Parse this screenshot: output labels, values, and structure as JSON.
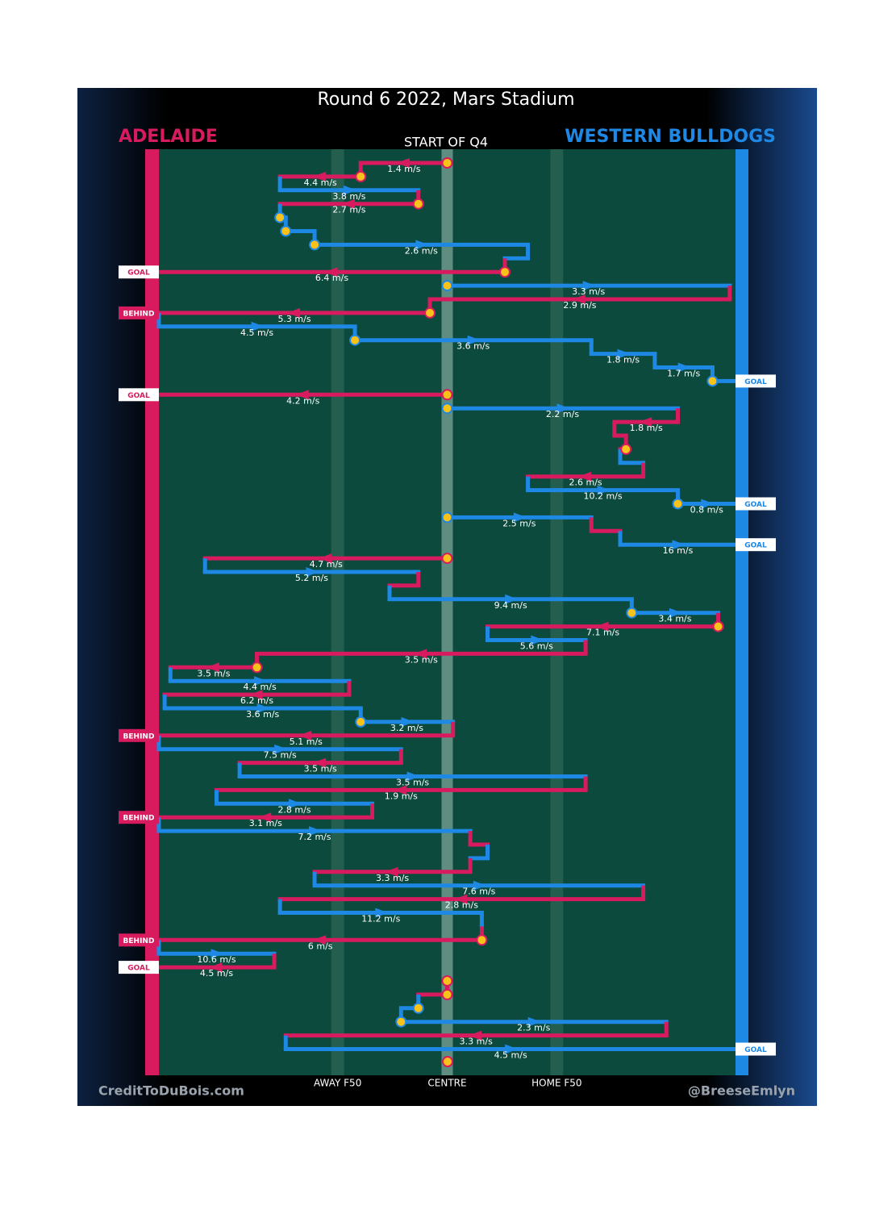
{
  "chart_data": {
    "type": "chain",
    "title": "Round 6 2022, Mars Stadium",
    "subtitle": "START OF Q4",
    "teams": [
      {
        "name": "ADELAIDE",
        "color": "#d81b5e"
      },
      {
        "name": "WESTERN BULLDOGS",
        "color": "#1e88e5"
      }
    ],
    "xlim": [
      0,
      100
    ],
    "xticks": [
      {
        "value": 31,
        "label": "AWAY F50"
      },
      {
        "value": 50,
        "label": "CENTRE"
      },
      {
        "value": 69,
        "label": "HOME F50"
      }
    ],
    "credits": [
      "CreditToDuBois.com",
      "@BreeseEmlyn"
    ],
    "moves": [
      {
        "team": 0,
        "from": 50,
        "to": 35,
        "label": "1.4 m/s",
        "stoppage": true
      },
      {
        "team": 0,
        "from": 35,
        "to": 21,
        "label": "4.4 m/s",
        "stoppage": true
      },
      {
        "team": 1,
        "from": 21,
        "to": 45,
        "label": "3.8 m/s"
      },
      {
        "team": 0,
        "from": 45,
        "to": 21,
        "label": "2.7 m/s",
        "stoppage": true
      },
      {
        "team": 1,
        "from": 21,
        "to": 22,
        "stoppage": true
      },
      {
        "team": 1,
        "from": 22,
        "to": 27,
        "stoppage": true
      },
      {
        "team": 1,
        "from": 27,
        "to": 64,
        "label": "2.6 m/s",
        "stoppage": true
      },
      {
        "team": 1,
        "from": 64,
        "to": 60
      },
      {
        "team": 0,
        "from": 60,
        "to": 0,
        "label": "6.4 m/s",
        "stoppage": true,
        "result": "GOAL"
      },
      {
        "team": 1,
        "from": 50,
        "to": 99,
        "label": "3.3 m/s",
        "stoppage": true
      },
      {
        "team": 0,
        "from": 99,
        "to": 47,
        "label": "2.9 m/s"
      },
      {
        "team": 0,
        "from": 47,
        "to": 0,
        "label": "5.3 m/s",
        "stoppage": true,
        "result": "BEHIND"
      },
      {
        "team": 1,
        "from": 0,
        "to": 34,
        "label": "4.5 m/s"
      },
      {
        "team": 1,
        "from": 34,
        "to": 75,
        "label": "3.6 m/s",
        "stoppage": true
      },
      {
        "team": 1,
        "from": 75,
        "to": 86,
        "label": "1.8 m/s"
      },
      {
        "team": 1,
        "from": 86,
        "to": 96,
        "label": "1.7 m/s"
      },
      {
        "team": 1,
        "from": 96,
        "to": 100,
        "stoppage": true,
        "result": "GOAL"
      },
      {
        "team": 0,
        "from": 50,
        "to": 0,
        "label": "4.2 m/s",
        "stoppage": true,
        "result": "GOAL"
      },
      {
        "team": 1,
        "from": 50,
        "to": 90,
        "label": "2.2 m/s",
        "stoppage": true
      },
      {
        "team": 0,
        "from": 90,
        "to": 79,
        "label": "1.8 m/s"
      },
      {
        "team": 0,
        "from": 79,
        "to": 81
      },
      {
        "team": 0,
        "from": 81,
        "to": 80,
        "stoppage": true
      },
      {
        "team": 1,
        "from": 80,
        "to": 84
      },
      {
        "team": 0,
        "from": 84,
        "to": 64,
        "label": "2.6 m/s"
      },
      {
        "team": 1,
        "from": 64,
        "to": 90,
        "label": "10.2 m/s"
      },
      {
        "team": 1,
        "from": 90,
        "to": 100,
        "label": "0.8 m/s",
        "stoppage": true,
        "result": "GOAL"
      },
      {
        "team": 1,
        "from": 50,
        "to": 75,
        "label": "2.5 m/s",
        "stoppage": true
      },
      {
        "team": 0,
        "from": 75,
        "to": 80
      },
      {
        "team": 1,
        "from": 80,
        "to": 100,
        "label": "16 m/s",
        "result": "GOAL"
      },
      {
        "team": 0,
        "from": 50,
        "to": 8,
        "label": "4.7 m/s",
        "stoppage": true
      },
      {
        "team": 1,
        "from": 8,
        "to": 45,
        "label": "5.2 m/s"
      },
      {
        "team": 0,
        "from": 45,
        "to": 40
      },
      {
        "team": 1,
        "from": 40,
        "to": 82,
        "label": "9.4 m/s"
      },
      {
        "team": 1,
        "from": 82,
        "to": 97,
        "label": "3.4 m/s",
        "stoppage": true
      },
      {
        "team": 0,
        "from": 97,
        "to": 57,
        "label": "7.1 m/s",
        "stoppage": true
      },
      {
        "team": 1,
        "from": 57,
        "to": 74,
        "label": "5.6 m/s"
      },
      {
        "team": 0,
        "from": 74,
        "to": 17,
        "label": "3.5 m/s"
      },
      {
        "team": 0,
        "from": 17,
        "to": 2,
        "label": "3.5 m/s",
        "stoppage": true
      },
      {
        "team": 1,
        "from": 2,
        "to": 33,
        "label": "4.4 m/s"
      },
      {
        "team": 0,
        "from": 33,
        "to": 1,
        "label": "6.2 m/s"
      },
      {
        "team": 1,
        "from": 1,
        "to": 35,
        "label": "3.6 m/s"
      },
      {
        "team": 1,
        "from": 35,
        "to": 51,
        "label": "3.2 m/s",
        "stoppage": true
      },
      {
        "team": 0,
        "from": 51,
        "to": 0,
        "label": "5.1 m/s",
        "result": "BEHIND"
      },
      {
        "team": 1,
        "from": 0,
        "to": 42,
        "label": "7.5 m/s"
      },
      {
        "team": 0,
        "from": 42,
        "to": 14,
        "label": "3.5 m/s"
      },
      {
        "team": 1,
        "from": 14,
        "to": 74,
        "label": "3.5 m/s"
      },
      {
        "team": 0,
        "from": 74,
        "to": 10,
        "label": "1.9 m/s"
      },
      {
        "team": 1,
        "from": 10,
        "to": 37,
        "label": "2.8 m/s"
      },
      {
        "team": 0,
        "from": 37,
        "to": 0,
        "label": "3.1 m/s",
        "result": "BEHIND"
      },
      {
        "team": 1,
        "from": 0,
        "to": 54,
        "label": "7.2 m/s"
      },
      {
        "team": 0,
        "from": 54,
        "to": 57
      },
      {
        "team": 1,
        "from": 57,
        "to": 54
      },
      {
        "team": 0,
        "from": 54,
        "to": 27,
        "label": "3.3 m/s"
      },
      {
        "team": 1,
        "from": 27,
        "to": 84,
        "label": "7.6 m/s"
      },
      {
        "team": 0,
        "from": 84,
        "to": 21,
        "label": "2.8 m/s"
      },
      {
        "team": 1,
        "from": 21,
        "to": 56,
        "label": "11.2 m/s"
      },
      {
        "team": 1,
        "from": 56,
        "to": 56
      },
      {
        "team": 0,
        "from": 56,
        "to": 0,
        "label": "6 m/s",
        "stoppage": true,
        "result": "BEHIND"
      },
      {
        "team": 1,
        "from": 0,
        "to": 20,
        "label": "10.6 m/s"
      },
      {
        "team": 0,
        "from": 20,
        "to": 0,
        "label": "4.5 m/s",
        "result": "GOAL"
      },
      {
        "team": 0,
        "from": 50,
        "to": 50,
        "stoppage": true
      },
      {
        "team": 0,
        "from": 50,
        "to": 45,
        "stoppage": true
      },
      {
        "team": 1,
        "from": 45,
        "to": 42,
        "stoppage": true
      },
      {
        "team": 1,
        "from": 42,
        "to": 88,
        "label": "2.3 m/s",
        "stoppage": true
      },
      {
        "team": 0,
        "from": 88,
        "to": 22,
        "label": "3.3 m/s"
      },
      {
        "team": 1,
        "from": 22,
        "to": 100,
        "label": "4.5 m/s",
        "result": "GOAL"
      }
    ]
  }
}
